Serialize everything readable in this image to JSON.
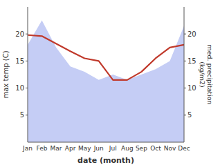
{
  "chart_data": {
    "type": "line",
    "x_label": "date (month)",
    "y_label": "max temp (C)",
    "y2_label": "med. precipitation\n(kg/m2)",
    "categories": [
      "Jan",
      "Feb",
      "Mar",
      "Apr",
      "May",
      "Jun",
      "Jul",
      "Aug",
      "Sep",
      "Oct",
      "Nov",
      "Dec"
    ],
    "series": [
      {
        "type": "area",
        "axis": "y2",
        "color": "#c5cdf5",
        "values": [
          18.0,
          22.5,
          17.5,
          14.0,
          13.0,
          11.5,
          12.5,
          11.5,
          12.5,
          13.5,
          15.0,
          21.5
        ]
      },
      {
        "type": "line",
        "color": "#c0392b",
        "values": [
          19.8,
          19.6,
          18.2,
          16.8,
          15.5,
          15.0,
          11.5,
          11.5,
          13.0,
          15.5,
          17.5,
          18.0
        ]
      }
    ],
    "ylim": [
      0,
      25
    ],
    "yticks": [
      5,
      10,
      15,
      20
    ],
    "y2lim": [
      0,
      25
    ],
    "y2ticks": [
      5,
      10,
      15,
      20
    ],
    "grid": false
  }
}
